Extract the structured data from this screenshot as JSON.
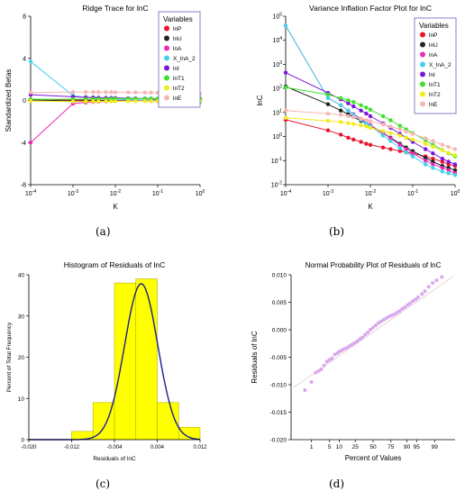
{
  "panels": [
    {
      "label": "(a)"
    },
    {
      "label": "(b)"
    },
    {
      "label": "(c)"
    },
    {
      "label": "(d)"
    }
  ],
  "chart_data": [
    {
      "type": "line",
      "title": "Ridge Trace for lnC",
      "xlabel": "K",
      "ylabel": "Standardized Betas",
      "xscale": "log",
      "xlim": [
        0.0001,
        1
      ],
      "ylim": [
        -8,
        8
      ],
      "x_ticks": [
        "10^-4",
        "10^-3",
        "10^-2",
        "10^-1",
        "10^0"
      ],
      "y_ticks": [
        -8,
        -4,
        0,
        4,
        8
      ],
      "grid": false,
      "legend_title": "Variables",
      "legend_position": "top-right",
      "x": [
        0.0001,
        0.001,
        0.002,
        0.003,
        0.004,
        0.006,
        0.008,
        0.01,
        0.02,
        0.03,
        0.05,
        0.07,
        0.1,
        0.2,
        0.3,
        0.5,
        0.7,
        1.0
      ],
      "series": [
        {
          "name": "lnP",
          "color": "#e8132c",
          "values": [
            0.1,
            0.05,
            0.03,
            0.02,
            0.02,
            0.01,
            0.01,
            0.0,
            -0.02,
            -0.03,
            -0.04,
            -0.05,
            -0.06,
            -0.08,
            -0.1,
            -0.12,
            -0.13,
            -0.15
          ]
        },
        {
          "name": "lnU",
          "color": "#222222",
          "values": [
            0.05,
            -0.05,
            -0.05,
            -0.04,
            -0.03,
            -0.02,
            -0.02,
            -0.02,
            0.0,
            0.02,
            0.04,
            0.06,
            0.08,
            0.1,
            0.12,
            0.14,
            0.15,
            0.16
          ]
        },
        {
          "name": "lnA",
          "color": "#e92bb8",
          "values": [
            -4.0,
            -0.3,
            -0.2,
            -0.15,
            -0.12,
            -0.1,
            -0.08,
            -0.05,
            -0.02,
            0.0,
            0.02,
            0.04,
            0.05,
            0.06,
            0.07,
            0.08,
            0.08,
            0.09
          ]
        },
        {
          "name": "X_lnA_2",
          "color": "#42d2ef",
          "values": [
            3.7,
            0.45,
            0.3,
            0.25,
            0.2,
            0.18,
            0.15,
            0.12,
            0.08,
            0.06,
            0.04,
            0.02,
            0.0,
            -0.05,
            -0.08,
            -0.1,
            -0.12,
            -0.14
          ]
        },
        {
          "name": "lnI",
          "color": "#7b16d8",
          "values": [
            0.55,
            0.35,
            0.3,
            0.28,
            0.26,
            0.25,
            0.24,
            0.23,
            0.21,
            0.2,
            0.19,
            0.18,
            0.17,
            0.15,
            0.14,
            0.13,
            0.12,
            0.11
          ]
        },
        {
          "name": "lnT1",
          "color": "#3ee22c",
          "values": [
            0.1,
            0.12,
            0.13,
            0.14,
            0.15,
            0.15,
            0.16,
            0.16,
            0.17,
            0.17,
            0.18,
            0.18,
            0.18,
            0.18,
            0.17,
            0.17,
            0.16,
            0.15
          ]
        },
        {
          "name": "lnT2",
          "color": "#f2ee1a",
          "values": [
            -0.05,
            -0.1,
            -0.1,
            -0.09,
            -0.09,
            -0.08,
            -0.08,
            -0.08,
            -0.07,
            -0.07,
            -0.06,
            -0.06,
            -0.06,
            -0.05,
            -0.05,
            -0.05,
            -0.05,
            -0.05
          ]
        },
        {
          "name": "lnE",
          "color": "#f7b7b4",
          "values": [
            0.75,
            0.8,
            0.8,
            0.8,
            0.79,
            0.79,
            0.78,
            0.78,
            0.77,
            0.76,
            0.75,
            0.74,
            0.73,
            0.71,
            0.7,
            0.68,
            0.66,
            0.64
          ]
        }
      ]
    },
    {
      "type": "line",
      "title": "Variance Inflation Factor Plot for lnC",
      "xlabel": "K",
      "ylabel": "lnC",
      "xscale": "log",
      "yscale": "log",
      "xlim": [
        0.0001,
        1
      ],
      "ylim": [
        0.01,
        100000
      ],
      "x_ticks": [
        "10^-4",
        "10^-3",
        "10^-2",
        "10^-1",
        "10^0"
      ],
      "y_ticks": [
        "10^-2",
        "10^-1",
        "10^0",
        "10^1",
        "10^2",
        "10^3",
        "10^4",
        "10^5"
      ],
      "grid": false,
      "legend_title": "Variables",
      "legend_position": "top-right",
      "x": [
        0.0001,
        0.001,
        0.002,
        0.003,
        0.004,
        0.006,
        0.008,
        0.01,
        0.02,
        0.03,
        0.05,
        0.07,
        0.1,
        0.2,
        0.3,
        0.5,
        0.7,
        1.0
      ],
      "series": [
        {
          "name": "lnP",
          "color": "#e8132c",
          "values": [
            5,
            1.8,
            1.2,
            0.9,
            0.75,
            0.6,
            0.5,
            0.45,
            0.35,
            0.3,
            0.25,
            0.22,
            0.2,
            0.15,
            0.12,
            0.09,
            0.07,
            0.06
          ]
        },
        {
          "name": "lnU",
          "color": "#222222",
          "values": [
            120,
            22,
            12,
            8.5,
            6.5,
            4.5,
            3.5,
            2.8,
            1.4,
            0.9,
            0.5,
            0.35,
            0.25,
            0.13,
            0.09,
            0.06,
            0.05,
            0.04
          ]
        },
        {
          "name": "lnA",
          "color": "#e92bb8",
          "values": [
            40000,
            40,
            20,
            12,
            8.5,
            5.5,
            4,
            3,
            1.4,
            0.85,
            0.45,
            0.3,
            0.2,
            0.1,
            0.07,
            0.05,
            0.04,
            0.03
          ]
        },
        {
          "name": "X_lnA_2",
          "color": "#42d2ef",
          "values": [
            40000,
            40,
            20,
            12,
            8,
            5,
            3.6,
            2.7,
            1.1,
            0.65,
            0.33,
            0.22,
            0.15,
            0.07,
            0.05,
            0.035,
            0.03,
            0.025
          ]
        },
        {
          "name": "lnI",
          "color": "#7b16d8",
          "values": [
            450,
            65,
            35,
            24,
            18,
            12,
            9,
            7,
            3.5,
            2.3,
            1.3,
            0.9,
            0.6,
            0.3,
            0.2,
            0.12,
            0.09,
            0.07
          ]
        },
        {
          "name": "lnT1",
          "color": "#3ee22c",
          "values": [
            110,
            55,
            40,
            32,
            27,
            20,
            16,
            13,
            7,
            4.7,
            2.8,
            2,
            1.4,
            0.7,
            0.45,
            0.28,
            0.2,
            0.15
          ]
        },
        {
          "name": "lnT2",
          "color": "#f2ee1a",
          "values": [
            6,
            4.5,
            4,
            3.6,
            3.3,
            2.9,
            2.6,
            2.3,
            1.7,
            1.4,
            1.1,
            0.9,
            0.75,
            0.5,
            0.38,
            0.27,
            0.21,
            0.17
          ]
        },
        {
          "name": "lnE",
          "color": "#f7b7b4",
          "values": [
            12,
            9,
            8,
            7,
            6.4,
            5.5,
            4.9,
            4.4,
            3.2,
            2.6,
            2,
            1.6,
            1.3,
            0.85,
            0.65,
            0.46,
            0.37,
            0.3
          ]
        }
      ]
    },
    {
      "type": "bar",
      "title": "Histogram of Residuals of lnC",
      "xlabel": "Residuals of lnC",
      "ylabel": "Percent of Total Frequency",
      "xlim": [
        -0.02,
        0.012
      ],
      "ylim": [
        0,
        40
      ],
      "x_ticks": [
        "-0.020",
        "-0.012",
        "-0.004",
        "0.004",
        "0.012"
      ],
      "y_ticks": [
        0,
        10,
        20,
        30,
        40
      ],
      "grid": false,
      "bin_edges": [
        -0.012,
        -0.008,
        -0.004,
        0.0,
        0.004,
        0.008,
        0.012
      ],
      "values": [
        2,
        9,
        38,
        39,
        9,
        3
      ],
      "bar_color": "#ffff00",
      "curve": {
        "type": "normal",
        "mean": 0.001,
        "sd": 0.0031,
        "color": "#1a1f8c"
      }
    },
    {
      "type": "scatter",
      "title": "Normal Probability Plot of Residuals of lnC",
      "xlabel": "Percent of Values",
      "ylabel": "Residuals of lnC",
      "xscale": "normal-probability",
      "ylim": [
        -0.02,
        0.01
      ],
      "x_ticks": [
        "1",
        "5",
        "10",
        "25",
        "50",
        "75",
        "90",
        "95",
        "99"
      ],
      "y_ticks": [
        "-0.020",
        "-0.015",
        "-0.010",
        "-0.005",
        "0.000",
        "0.005",
        "0.010"
      ],
      "grid": false,
      "point_color": "#d9a8ee",
      "fit_line": {
        "z": [
          -3.0,
          3.0
        ],
        "y": [
          -0.0105,
          0.0096
        ]
      },
      "points": [
        {
          "z": -2.58,
          "y": -0.011
        },
        {
          "z": -2.33,
          "y": -0.0095
        },
        {
          "z": -2.17,
          "y": -0.0078
        },
        {
          "z": -2.05,
          "y": -0.0075
        },
        {
          "z": -1.96,
          "y": -0.0072
        },
        {
          "z": -1.85,
          "y": -0.0065
        },
        {
          "z": -1.75,
          "y": -0.0058
        },
        {
          "z": -1.65,
          "y": -0.0055
        },
        {
          "z": -1.55,
          "y": -0.0052
        },
        {
          "z": -1.45,
          "y": -0.0045
        },
        {
          "z": -1.35,
          "y": -0.0043
        },
        {
          "z": -1.28,
          "y": -0.004
        },
        {
          "z": -1.2,
          "y": -0.0038
        },
        {
          "z": -1.1,
          "y": -0.0035
        },
        {
          "z": -1.0,
          "y": -0.0033
        },
        {
          "z": -0.9,
          "y": -0.003
        },
        {
          "z": -0.8,
          "y": -0.0027
        },
        {
          "z": -0.7,
          "y": -0.0024
        },
        {
          "z": -0.6,
          "y": -0.0021
        },
        {
          "z": -0.5,
          "y": -0.0017
        },
        {
          "z": -0.4,
          "y": -0.0014
        },
        {
          "z": -0.3,
          "y": -0.0009
        },
        {
          "z": -0.2,
          "y": -0.0005
        },
        {
          "z": -0.1,
          "y": 0.0
        },
        {
          "z": 0.0,
          "y": 0.0004
        },
        {
          "z": 0.1,
          "y": 0.0008
        },
        {
          "z": 0.2,
          "y": 0.0012
        },
        {
          "z": 0.3,
          "y": 0.0015
        },
        {
          "z": 0.4,
          "y": 0.0018
        },
        {
          "z": 0.5,
          "y": 0.0021
        },
        {
          "z": 0.6,
          "y": 0.0024
        },
        {
          "z": 0.7,
          "y": 0.0026
        },
        {
          "z": 0.8,
          "y": 0.0028
        },
        {
          "z": 0.9,
          "y": 0.0031
        },
        {
          "z": 1.0,
          "y": 0.0034
        },
        {
          "z": 1.1,
          "y": 0.0038
        },
        {
          "z": 1.2,
          "y": 0.0041
        },
        {
          "z": 1.3,
          "y": 0.0045
        },
        {
          "z": 1.4,
          "y": 0.0048
        },
        {
          "z": 1.5,
          "y": 0.0052
        },
        {
          "z": 1.6,
          "y": 0.0055
        },
        {
          "z": 1.7,
          "y": 0.0059
        },
        {
          "z": 1.85,
          "y": 0.0065
        },
        {
          "z": 1.96,
          "y": 0.007
        },
        {
          "z": 2.1,
          "y": 0.0078
        },
        {
          "z": 2.25,
          "y": 0.0085
        },
        {
          "z": 2.4,
          "y": 0.009
        },
        {
          "z": 2.6,
          "y": 0.0096
        }
      ]
    }
  ]
}
